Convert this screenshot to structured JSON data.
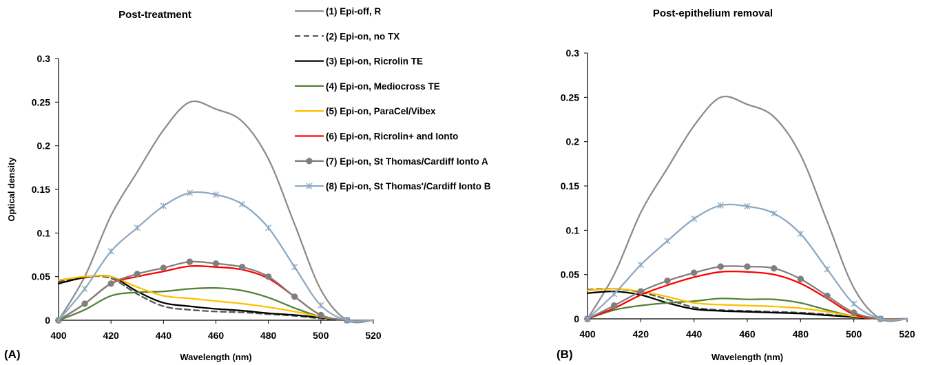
{
  "figure": {
    "panel_labels": [
      "(A)",
      "(B)"
    ]
  },
  "legend": {
    "entries": [
      {
        "label": "(1) Epi-off, R",
        "color": "#8c8c8c",
        "dash": "solid",
        "marker": "none"
      },
      {
        "label": "(2) Epi-on, no TX",
        "color": "#595959",
        "dash": "dashed",
        "marker": "none"
      },
      {
        "label": "(3) Epi-on, Ricrolin TE",
        "color": "#000000",
        "dash": "solid",
        "marker": "none"
      },
      {
        "label": "(4) Epi-on, Mediocross TE",
        "color": "#548235",
        "dash": "solid",
        "marker": "none"
      },
      {
        "label": "(5) Epi-on, ParaCel/Vibex",
        "color": "#ffc000",
        "dash": "solid",
        "marker": "none"
      },
      {
        "label": "(6) Epi-on, Ricrolin+ and Ionto",
        "color": "#ff0000",
        "dash": "solid",
        "marker": "none"
      },
      {
        "label": "(7) Epi-on, St Thomas/Cardiff Ionto A",
        "color": "#7f7f7f",
        "dash": "solid",
        "marker": "circle"
      },
      {
        "label": "(8) Epi-on, St Thomas'/Cardiff Ionto B",
        "color": "#8ea9c1",
        "dash": "solid",
        "marker": "asterisk"
      }
    ]
  },
  "chart_data": [
    {
      "type": "line",
      "title": "Post-treatment",
      "xlabel": "Wavelength (nm)",
      "ylabel": "Optical density",
      "xlim": [
        400,
        520
      ],
      "ylim": [
        0,
        0.3
      ],
      "xticks": [
        "400",
        "420",
        "440",
        "460",
        "480",
        "500",
        "520"
      ],
      "yticks": [
        "0",
        "0.05",
        "0.1",
        "0.15",
        "0.2",
        "0.25",
        "0.3"
      ],
      "grid": false,
      "legend_position": "top-center",
      "x": [
        400,
        410,
        420,
        430,
        440,
        450,
        460,
        470,
        480,
        490,
        500,
        510,
        520
      ],
      "series": [
        {
          "name": "(1) Epi-off, R",
          "values": [
            0,
            0.05,
            0.12,
            0.17,
            0.218,
            0.25,
            0.242,
            0.228,
            0.185,
            0.11,
            0.035,
            0,
            0
          ]
        },
        {
          "name": "(2) Epi-on, no TX",
          "values": [
            0.044,
            0.05,
            0.048,
            0.03,
            0.016,
            0.012,
            0.01,
            0.009,
            0.007,
            0.005,
            0.002,
            0,
            0
          ]
        },
        {
          "name": "(3) Epi-on, Ricrolin TE",
          "values": [
            0.042,
            0.049,
            0.05,
            0.033,
            0.02,
            0.016,
            0.013,
            0.011,
            0.008,
            0.006,
            0.003,
            0,
            0
          ]
        },
        {
          "name": "(4) Epi-on, Mediocross TE",
          "values": [
            0,
            0.012,
            0.028,
            0.032,
            0.033,
            0.036,
            0.037,
            0.034,
            0.026,
            0.014,
            0.004,
            0,
            0
          ]
        },
        {
          "name": "(5) Epi-on, ParaCel/Vibex",
          "values": [
            0.046,
            0.05,
            0.05,
            0.038,
            0.028,
            0.025,
            0.022,
            0.019,
            0.015,
            0.01,
            0.004,
            0,
            0
          ]
        },
        {
          "name": "(6) Epi-on, Ricrolin+ and Ionto",
          "values": [
            0,
            0.019,
            0.042,
            0.05,
            0.056,
            0.062,
            0.061,
            0.058,
            0.048,
            0.027,
            0.006,
            0,
            0
          ]
        },
        {
          "name": "(7) Epi-on, St Thomas/Cardiff Ionto A",
          "values": [
            0,
            0.019,
            0.042,
            0.053,
            0.06,
            0.067,
            0.065,
            0.061,
            0.05,
            0.027,
            0.006,
            0,
            0
          ]
        },
        {
          "name": "(8) Epi-on, St Thomas'/Cardiff Ionto B",
          "values": [
            0,
            0.036,
            0.079,
            0.106,
            0.131,
            0.146,
            0.144,
            0.133,
            0.106,
            0.061,
            0.017,
            0,
            0
          ]
        }
      ]
    },
    {
      "type": "line",
      "title": "Post-epithelium removal",
      "xlabel": "Wavelength (nm)",
      "ylabel": "",
      "xlim": [
        400,
        520
      ],
      "ylim": [
        0,
        0.3
      ],
      "xticks": [
        "400",
        "420",
        "440",
        "460",
        "480",
        "500",
        "520"
      ],
      "yticks": [
        "0",
        "0.05",
        "0.1",
        "0.15",
        "0.2",
        "0.25",
        "0.3"
      ],
      "grid": false,
      "x": [
        400,
        410,
        420,
        430,
        440,
        450,
        460,
        470,
        480,
        490,
        500,
        510,
        520
      ],
      "series": [
        {
          "name": "(1) Epi-off, R",
          "values": [
            0,
            0.05,
            0.12,
            0.17,
            0.218,
            0.25,
            0.242,
            0.228,
            0.185,
            0.11,
            0.035,
            0,
            0
          ]
        },
        {
          "name": "(2) Epi-on, no TX",
          "values": [
            0.033,
            0.034,
            0.03,
            0.022,
            0.013,
            0.01,
            0.009,
            0.008,
            0.007,
            0.005,
            0.002,
            0,
            0
          ]
        },
        {
          "name": "(3) Epi-on, Ricrolin TE",
          "values": [
            0.029,
            0.031,
            0.027,
            0.018,
            0.011,
            0.009,
            0.008,
            0.007,
            0.006,
            0.004,
            0.002,
            0,
            0
          ]
        },
        {
          "name": "(4) Epi-on, Mediocross TE",
          "values": [
            0,
            0.01,
            0.015,
            0.018,
            0.02,
            0.023,
            0.022,
            0.022,
            0.018,
            0.01,
            0.003,
            0,
            0
          ]
        },
        {
          "name": "(5) Epi-on, ParaCel/Vibex",
          "values": [
            0.032,
            0.034,
            0.031,
            0.025,
            0.018,
            0.016,
            0.015,
            0.014,
            0.012,
            0.008,
            0.003,
            0,
            0
          ]
        },
        {
          "name": "(6) Epi-on, Ricrolin+ and Ionto",
          "values": [
            0,
            0.012,
            0.027,
            0.038,
            0.047,
            0.053,
            0.053,
            0.05,
            0.04,
            0.023,
            0.005,
            0,
            0
          ]
        },
        {
          "name": "(7) Epi-on, St Thomas/Cardiff Ionto A",
          "values": [
            0,
            0.015,
            0.031,
            0.043,
            0.052,
            0.059,
            0.059,
            0.057,
            0.045,
            0.026,
            0.007,
            0,
            0
          ]
        },
        {
          "name": "(8) Epi-on, St Thomas'/Cardiff Ionto B",
          "values": [
            0,
            0.028,
            0.061,
            0.088,
            0.113,
            0.128,
            0.127,
            0.119,
            0.096,
            0.056,
            0.017,
            0,
            0
          ]
        }
      ]
    }
  ]
}
